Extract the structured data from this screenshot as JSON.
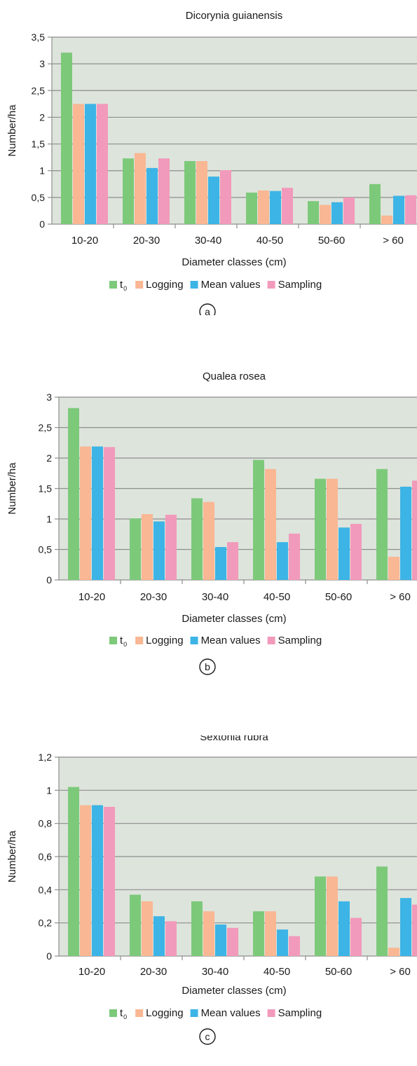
{
  "colors": {
    "t0": "#7dc97a",
    "logging": "#f9b793",
    "mean": "#3db4e6",
    "sampling": "#f29abb",
    "plot_bg": "#dde4dc",
    "grid": "#8e8e8e"
  },
  "chart_data": [
    {
      "type": "bar",
      "title": "Dicorynia guianensis",
      "xlabel": "Diameter classes (cm)",
      "ylabel": "Number/ha",
      "ylim": [
        0,
        3.5
      ],
      "yticks": [
        "0",
        "0,5",
        "1",
        "1,5",
        "2",
        "2,5",
        "3",
        "3,5"
      ],
      "categories": [
        "10-20",
        "20-30",
        "30-40",
        "40-50",
        "50-60",
        "> 60"
      ],
      "series": [
        {
          "name": "t",
          "subscript": "0",
          "values": [
            3.21,
            1.23,
            1.18,
            0.59,
            0.43,
            0.75
          ]
        },
        {
          "name": "Logging",
          "values": [
            2.25,
            1.33,
            1.18,
            0.63,
            0.36,
            0.16
          ]
        },
        {
          "name": "Mean values",
          "values": [
            2.25,
            1.05,
            0.89,
            0.62,
            0.41,
            0.53
          ]
        },
        {
          "name": "Sampling",
          "values": [
            2.25,
            1.23,
            1.01,
            0.68,
            0.5,
            0.54
          ]
        }
      ],
      "panel_label": "a",
      "grid": true,
      "legend": "bottom"
    },
    {
      "type": "bar",
      "title": "Qualea rosea",
      "xlabel": "Diameter classes (cm)",
      "ylabel": "Number/ha",
      "ylim": [
        0,
        3
      ],
      "yticks": [
        "0",
        "0,5",
        "1",
        "1,5",
        "2",
        "2,5",
        "3"
      ],
      "categories": [
        "10-20",
        "20-30",
        "30-40",
        "40-50",
        "50-60",
        "> 60"
      ],
      "series": [
        {
          "name": "t",
          "subscript": "0",
          "values": [
            2.82,
            1.01,
            1.34,
            1.97,
            1.66,
            1.82
          ]
        },
        {
          "name": "Logging",
          "values": [
            2.19,
            1.08,
            1.28,
            1.82,
            1.66,
            0.38
          ]
        },
        {
          "name": "Mean values",
          "values": [
            2.19,
            0.96,
            0.54,
            0.62,
            0.86,
            1.53
          ]
        },
        {
          "name": "Sampling",
          "values": [
            2.18,
            1.07,
            0.62,
            0.76,
            0.92,
            1.63
          ]
        }
      ],
      "panel_label": "b",
      "grid": true,
      "legend": "bottom"
    },
    {
      "type": "bar",
      "title": "Sextonia rubra",
      "xlabel": "Diameter classes (cm)",
      "ylabel": "Number/ha",
      "ylim": [
        0,
        1.2
      ],
      "yticks": [
        "0",
        "0,2",
        "0,4",
        "0,6",
        "0,8",
        "1",
        "1,2"
      ],
      "categories": [
        "10-20",
        "20-30",
        "30-40",
        "40-50",
        "50-60",
        "> 60"
      ],
      "series": [
        {
          "name": "t",
          "subscript": "0",
          "values": [
            1.02,
            0.37,
            0.33,
            0.27,
            0.48,
            0.54
          ]
        },
        {
          "name": "Logging",
          "values": [
            0.91,
            0.33,
            0.27,
            0.27,
            0.48,
            0.05
          ]
        },
        {
          "name": "Mean values",
          "values": [
            0.91,
            0.24,
            0.19,
            0.16,
            0.33,
            0.35
          ]
        },
        {
          "name": "Sampling",
          "values": [
            0.9,
            0.21,
            0.17,
            0.12,
            0.23,
            0.31
          ]
        }
      ],
      "panel_label": "c",
      "grid": true,
      "legend": "bottom"
    }
  ]
}
